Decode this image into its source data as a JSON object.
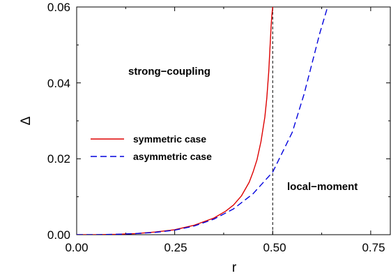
{
  "chart_data": {
    "type": "line",
    "xlabel": "r",
    "ylabel": "Δ",
    "xlim": [
      0.0,
      0.8
    ],
    "ylim": [
      0.0,
      0.06
    ],
    "xticks": [
      "0.00",
      "0.25",
      "0.50",
      "0.75"
    ],
    "yticks": [
      "0.00",
      "0.02",
      "0.04",
      "0.06"
    ],
    "grid": false,
    "legend_position": "middle-left",
    "reference_line": {
      "x": 0.5,
      "style": "dashed",
      "color": "#000000"
    },
    "annotations": [
      "strong−coupling",
      "local−moment"
    ],
    "series": [
      {
        "name": "symmetric case",
        "color": "#dd0000",
        "style": "solid",
        "x": [
          0.0,
          0.05,
          0.1,
          0.15,
          0.2,
          0.25,
          0.3,
          0.35,
          0.38,
          0.4,
          0.42,
          0.44,
          0.45,
          0.46,
          0.47,
          0.48,
          0.485,
          0.49,
          0.493,
          0.496,
          0.498,
          0.5
        ],
        "y": [
          0.0,
          2e-05,
          0.0001,
          0.0003,
          0.0007,
          0.0013,
          0.0025,
          0.0044,
          0.0062,
          0.0078,
          0.0102,
          0.0138,
          0.0165,
          0.0198,
          0.0245,
          0.031,
          0.036,
          0.043,
          0.049,
          0.055,
          0.058,
          0.06
        ]
      },
      {
        "name": "asymmetric case",
        "color": "#0000dd",
        "style": "dashed",
        "x": [
          0.0,
          0.05,
          0.1,
          0.15,
          0.2,
          0.25,
          0.3,
          0.35,
          0.4,
          0.45,
          0.5,
          0.55,
          0.58,
          0.6,
          0.62,
          0.64
        ],
        "y": [
          0.0,
          2e-05,
          0.0001,
          0.0003,
          0.0006,
          0.0012,
          0.0023,
          0.0041,
          0.0068,
          0.0108,
          0.0165,
          0.027,
          0.037,
          0.045,
          0.053,
          0.06
        ]
      }
    ]
  }
}
